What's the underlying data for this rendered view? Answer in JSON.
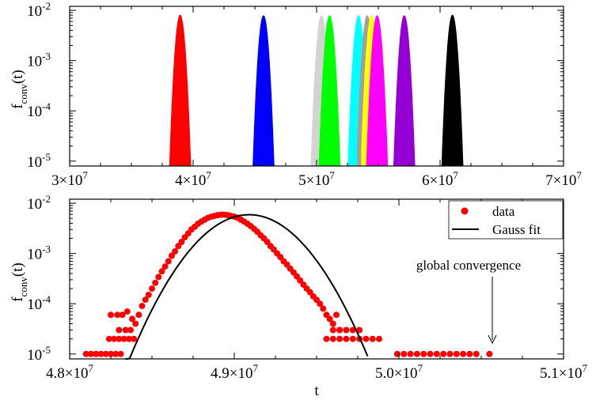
{
  "chart_data": [
    {
      "type": "area",
      "ylabel": "f",
      "ylabel_sub": "conv",
      "ylabel_suffix": "(t)",
      "xlabel": "",
      "x_scale": "linear",
      "y_scale": "log",
      "xlim": [
        30000000,
        70000000
      ],
      "ylim": [
        8e-06,
        0.012
      ],
      "grid": false,
      "x_ticks": [
        {
          "value": 30000000,
          "mant": "3×10",
          "exp": "7"
        },
        {
          "value": 40000000,
          "mant": "4×10",
          "exp": "7"
        },
        {
          "value": 50000000,
          "mant": "5×10",
          "exp": "7"
        },
        {
          "value": 60000000,
          "mant": "6×10",
          "exp": "7"
        },
        {
          "value": 70000000,
          "mant": "7×10",
          "exp": "7"
        }
      ],
      "y_ticks": [
        {
          "value": 0.01,
          "mant": "10",
          "exp": "-2"
        },
        {
          "value": 0.001,
          "mant": "10",
          "exp": "-3"
        },
        {
          "value": 0.0001,
          "mant": "10",
          "exp": "-4"
        },
        {
          "value": 1e-05,
          "mant": "10",
          "exp": "-5"
        }
      ],
      "series": [
        {
          "color": "#ff0000",
          "center": 38950000,
          "peak": 0.008,
          "sigma": 230000,
          "x_min": 38050000,
          "x_max": 39880000
        },
        {
          "color": "#0000ff",
          "center": 45700000,
          "peak": 0.0078,
          "sigma": 230000,
          "x_min": 44850000,
          "x_max": 46650000
        },
        {
          "color": "#d3d3d3",
          "center": 50400000,
          "peak": 0.0078,
          "sigma": 230000,
          "x_min": 49450000,
          "x_max": 51300000
        },
        {
          "color": "#00ff00",
          "center": 51050000,
          "peak": 0.0078,
          "sigma": 230000,
          "x_min": 50100000,
          "x_max": 52000000
        },
        {
          "color": "#00ffff",
          "center": 53400000,
          "peak": 0.0078,
          "sigma": 230000,
          "x_min": 52500000,
          "x_max": 54350000
        },
        {
          "color": "#a0a0a0",
          "center": 54100000,
          "peak": 0.0078,
          "sigma": 230000,
          "x_min": 53300000,
          "x_max": 55000000
        },
        {
          "color": "#ffff00",
          "center": 54450000,
          "peak": 0.0078,
          "sigma": 230000,
          "x_min": 53650000,
          "x_max": 55350000
        },
        {
          "color": "#ff00ff",
          "center": 54900000,
          "peak": 0.0078,
          "sigma": 230000,
          "x_min": 53900000,
          "x_max": 55800000
        },
        {
          "color": "#9400d3",
          "center": 57100000,
          "peak": 0.0078,
          "sigma": 230000,
          "x_min": 56100000,
          "x_max": 58000000
        },
        {
          "color": "#000000",
          "center": 61000000,
          "peak": 0.008,
          "sigma": 230000,
          "x_min": 60100000,
          "x_max": 62000000
        }
      ]
    },
    {
      "type": "scatter",
      "xlabel": "t",
      "ylabel": "f",
      "ylabel_sub": "conv",
      "ylabel_suffix": "(t)",
      "x_scale": "linear",
      "y_scale": "log",
      "xlim": [
        48000000,
        51000000
      ],
      "ylim": [
        8e-06,
        0.012
      ],
      "grid": false,
      "x_ticks": [
        {
          "value": 48000000,
          "mant": "4.8×10",
          "exp": "7"
        },
        {
          "value": 49000000,
          "mant": "4.9×10",
          "exp": "7"
        },
        {
          "value": 50000000,
          "mant": "5.0×10",
          "exp": "7"
        },
        {
          "value": 51000000,
          "mant": "5.1×10",
          "exp": "7"
        }
      ],
      "y_ticks": [
        {
          "value": 0.01,
          "mant": "10",
          "exp": "-2"
        },
        {
          "value": 0.001,
          "mant": "10",
          "exp": "-3"
        },
        {
          "value": 0.0001,
          "mant": "10",
          "exp": "-4"
        },
        {
          "value": 1e-05,
          "mant": "10",
          "exp": "-5"
        }
      ],
      "legend_position": "top-right",
      "series": [
        {
          "name": "data",
          "color": "#ff0000",
          "marker": "circle",
          "points": [
            [
              48100000,
              1e-05
            ],
            [
              48130000,
              1e-05
            ],
            [
              48160000,
              1e-05
            ],
            [
              48190000,
              1e-05
            ],
            [
              48220000,
              1e-05
            ],
            [
              48250000,
              1e-05
            ],
            [
              48280000,
              1e-05
            ],
            [
              48310000,
              1e-05
            ],
            [
              48240000,
              2e-05
            ],
            [
              48270000,
              2e-05
            ],
            [
              48300000,
              2e-05
            ],
            [
              48330000,
              2e-05
            ],
            [
              48360000,
              2e-05
            ],
            [
              48390000,
              2e-05
            ],
            [
              48300000,
              3e-05
            ],
            [
              48340000,
              3e-05
            ],
            [
              48370000,
              3e-05
            ],
            [
              48250000,
              6e-05
            ],
            [
              48290000,
              6e-05
            ],
            [
              48320000,
              6e-05
            ],
            [
              48350000,
              7e-05
            ],
            [
              48380000,
              5e-05
            ],
            [
              48400000,
              4e-05
            ],
            [
              48420000,
              6e-05
            ],
            [
              48440000,
              9e-05
            ],
            [
              48460000,
              0.00012
            ],
            [
              48480000,
              0.00015
            ],
            [
              48500000,
              0.0002
            ],
            [
              48520000,
              0.00026
            ],
            [
              48540000,
              0.00034
            ],
            [
              48560000,
              0.00044
            ],
            [
              48580000,
              0.00055
            ],
            [
              48600000,
              0.0007
            ],
            [
              48620000,
              0.0009
            ],
            [
              48640000,
              0.0011
            ],
            [
              48660000,
              0.0014
            ],
            [
              48680000,
              0.0017
            ],
            [
              48700000,
              0.0021
            ],
            [
              48720000,
              0.0025
            ],
            [
              48740000,
              0.003
            ],
            [
              48760000,
              0.0034
            ],
            [
              48780000,
              0.0039
            ],
            [
              48800000,
              0.0043
            ],
            [
              48820000,
              0.0047
            ],
            [
              48840000,
              0.0051
            ],
            [
              48860000,
              0.0054
            ],
            [
              48880000,
              0.0056
            ],
            [
              48900000,
              0.0058
            ],
            [
              48920000,
              0.0059
            ],
            [
              48940000,
              0.0059
            ],
            [
              48960000,
              0.0058
            ],
            [
              48980000,
              0.0056
            ],
            [
              49000000,
              0.0054
            ],
            [
              49020000,
              0.0051
            ],
            [
              49040000,
              0.0047
            ],
            [
              49060000,
              0.0043
            ],
            [
              49080000,
              0.0039
            ],
            [
              49100000,
              0.0035
            ],
            [
              49120000,
              0.0031
            ],
            [
              49140000,
              0.0027
            ],
            [
              49160000,
              0.0023
            ],
            [
              49180000,
              0.002
            ],
            [
              49200000,
              0.0017
            ],
            [
              49220000,
              0.0014
            ],
            [
              49240000,
              0.0012
            ],
            [
              49260000,
              0.001
            ],
            [
              49280000,
              0.00085
            ],
            [
              49300000,
              0.0007
            ],
            [
              49320000,
              0.0006
            ],
            [
              49340000,
              0.0005
            ],
            [
              49360000,
              0.00042
            ],
            [
              49380000,
              0.00035
            ],
            [
              49400000,
              0.00029
            ],
            [
              49420000,
              0.00024
            ],
            [
              49440000,
              0.0002
            ],
            [
              49460000,
              0.00017
            ],
            [
              49480000,
              0.00014
            ],
            [
              49500000,
              0.00012
            ],
            [
              49520000,
              0.0001
            ],
            [
              49540000,
              8e-05
            ],
            [
              49560000,
              6e-05
            ],
            [
              49580000,
              5e-05
            ],
            [
              49600000,
              4e-05
            ],
            [
              49620000,
              6e-05
            ],
            [
              49640000,
              3e-05
            ],
            [
              49560000,
              2e-05
            ],
            [
              49600000,
              2e-05
            ],
            [
              49640000,
              2e-05
            ],
            [
              49680000,
              2e-05
            ],
            [
              49720000,
              2e-05
            ],
            [
              49760000,
              2e-05
            ],
            [
              49800000,
              2e-05
            ],
            [
              49840000,
              2e-05
            ],
            [
              49880000,
              2e-05
            ],
            [
              49600000,
              3e-05
            ],
            [
              49640000,
              3e-05
            ],
            [
              49680000,
              3e-05
            ],
            [
              49720000,
              3e-05
            ],
            [
              49760000,
              3e-05
            ],
            [
              49990000,
              1e-05
            ],
            [
              50030000,
              1e-05
            ],
            [
              50070000,
              1e-05
            ],
            [
              50110000,
              1e-05
            ],
            [
              50150000,
              1e-05
            ],
            [
              50190000,
              1e-05
            ],
            [
              50230000,
              1e-05
            ],
            [
              50270000,
              1e-05
            ],
            [
              50310000,
              1e-05
            ],
            [
              50350000,
              1e-05
            ],
            [
              50390000,
              1e-05
            ],
            [
              50430000,
              1e-05
            ],
            [
              50470000,
              1e-05
            ],
            [
              50550000,
              1e-05
            ]
          ]
        },
        {
          "name": "Gauss fit",
          "color": "#000000",
          "type": "line",
          "center": 49090000,
          "peak": 0.0059,
          "sigma": 200000,
          "x_range": [
            48340000,
            49810000
          ]
        }
      ],
      "annotations": [
        {
          "text": "global convergence",
          "arrow_to_x": 50550000,
          "arrow_to_y": 1.3e-05,
          "text_x": 50110000,
          "text_y": 0.0012
        }
      ]
    }
  ]
}
